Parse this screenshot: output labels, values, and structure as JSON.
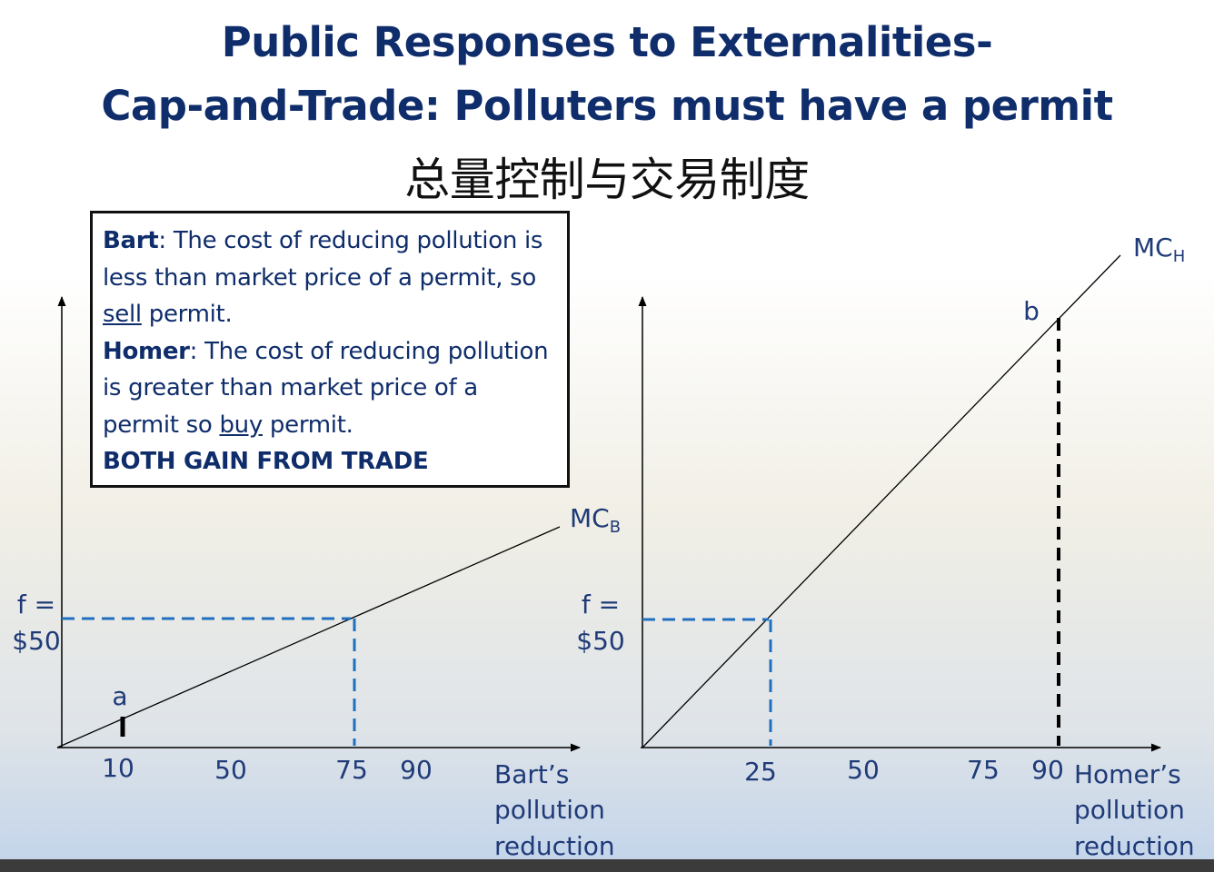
{
  "title": {
    "line1": "Public Responses to Externalities-",
    "line2": "Cap-and-Trade: Polluters must have a permit",
    "line3": "总量控制与交易制度"
  },
  "textbox": {
    "bart_name": "Bart",
    "bart_a": ": The cost of reducing pollution is less than market price of a permit, so ",
    "bart_u": "sell",
    "bart_b": " permit.",
    "homer_name": "Homer",
    "homer_a": ": The cost of reducing pollution is greater than market price of a permit so ",
    "homer_u": "buy",
    "homer_b": " permit.",
    "conclusion": "BOTH GAIN FROM TRADE"
  },
  "left_graph": {
    "curve_main": "MC",
    "curve_sub": "B",
    "price_line1": "f =",
    "price_line2": "$50",
    "point_label": "a",
    "ticks": [
      "10",
      "50",
      "75",
      "90"
    ],
    "xlabel": [
      "Bart’s",
      "pollution",
      "reduction"
    ]
  },
  "right_graph": {
    "curve_main": "MC",
    "curve_sub": "H",
    "price_line1": "f =",
    "price_line2": "$50",
    "point_label": "b",
    "ticks": [
      "25",
      "50",
      "75",
      "90"
    ],
    "xlabel": [
      "Homer’s",
      "pollution",
      "reduction"
    ]
  },
  "colors": {
    "title": "#0f2d6b",
    "guide_blue": "#1f6fbf",
    "label_blue": "#1f3a78"
  }
}
